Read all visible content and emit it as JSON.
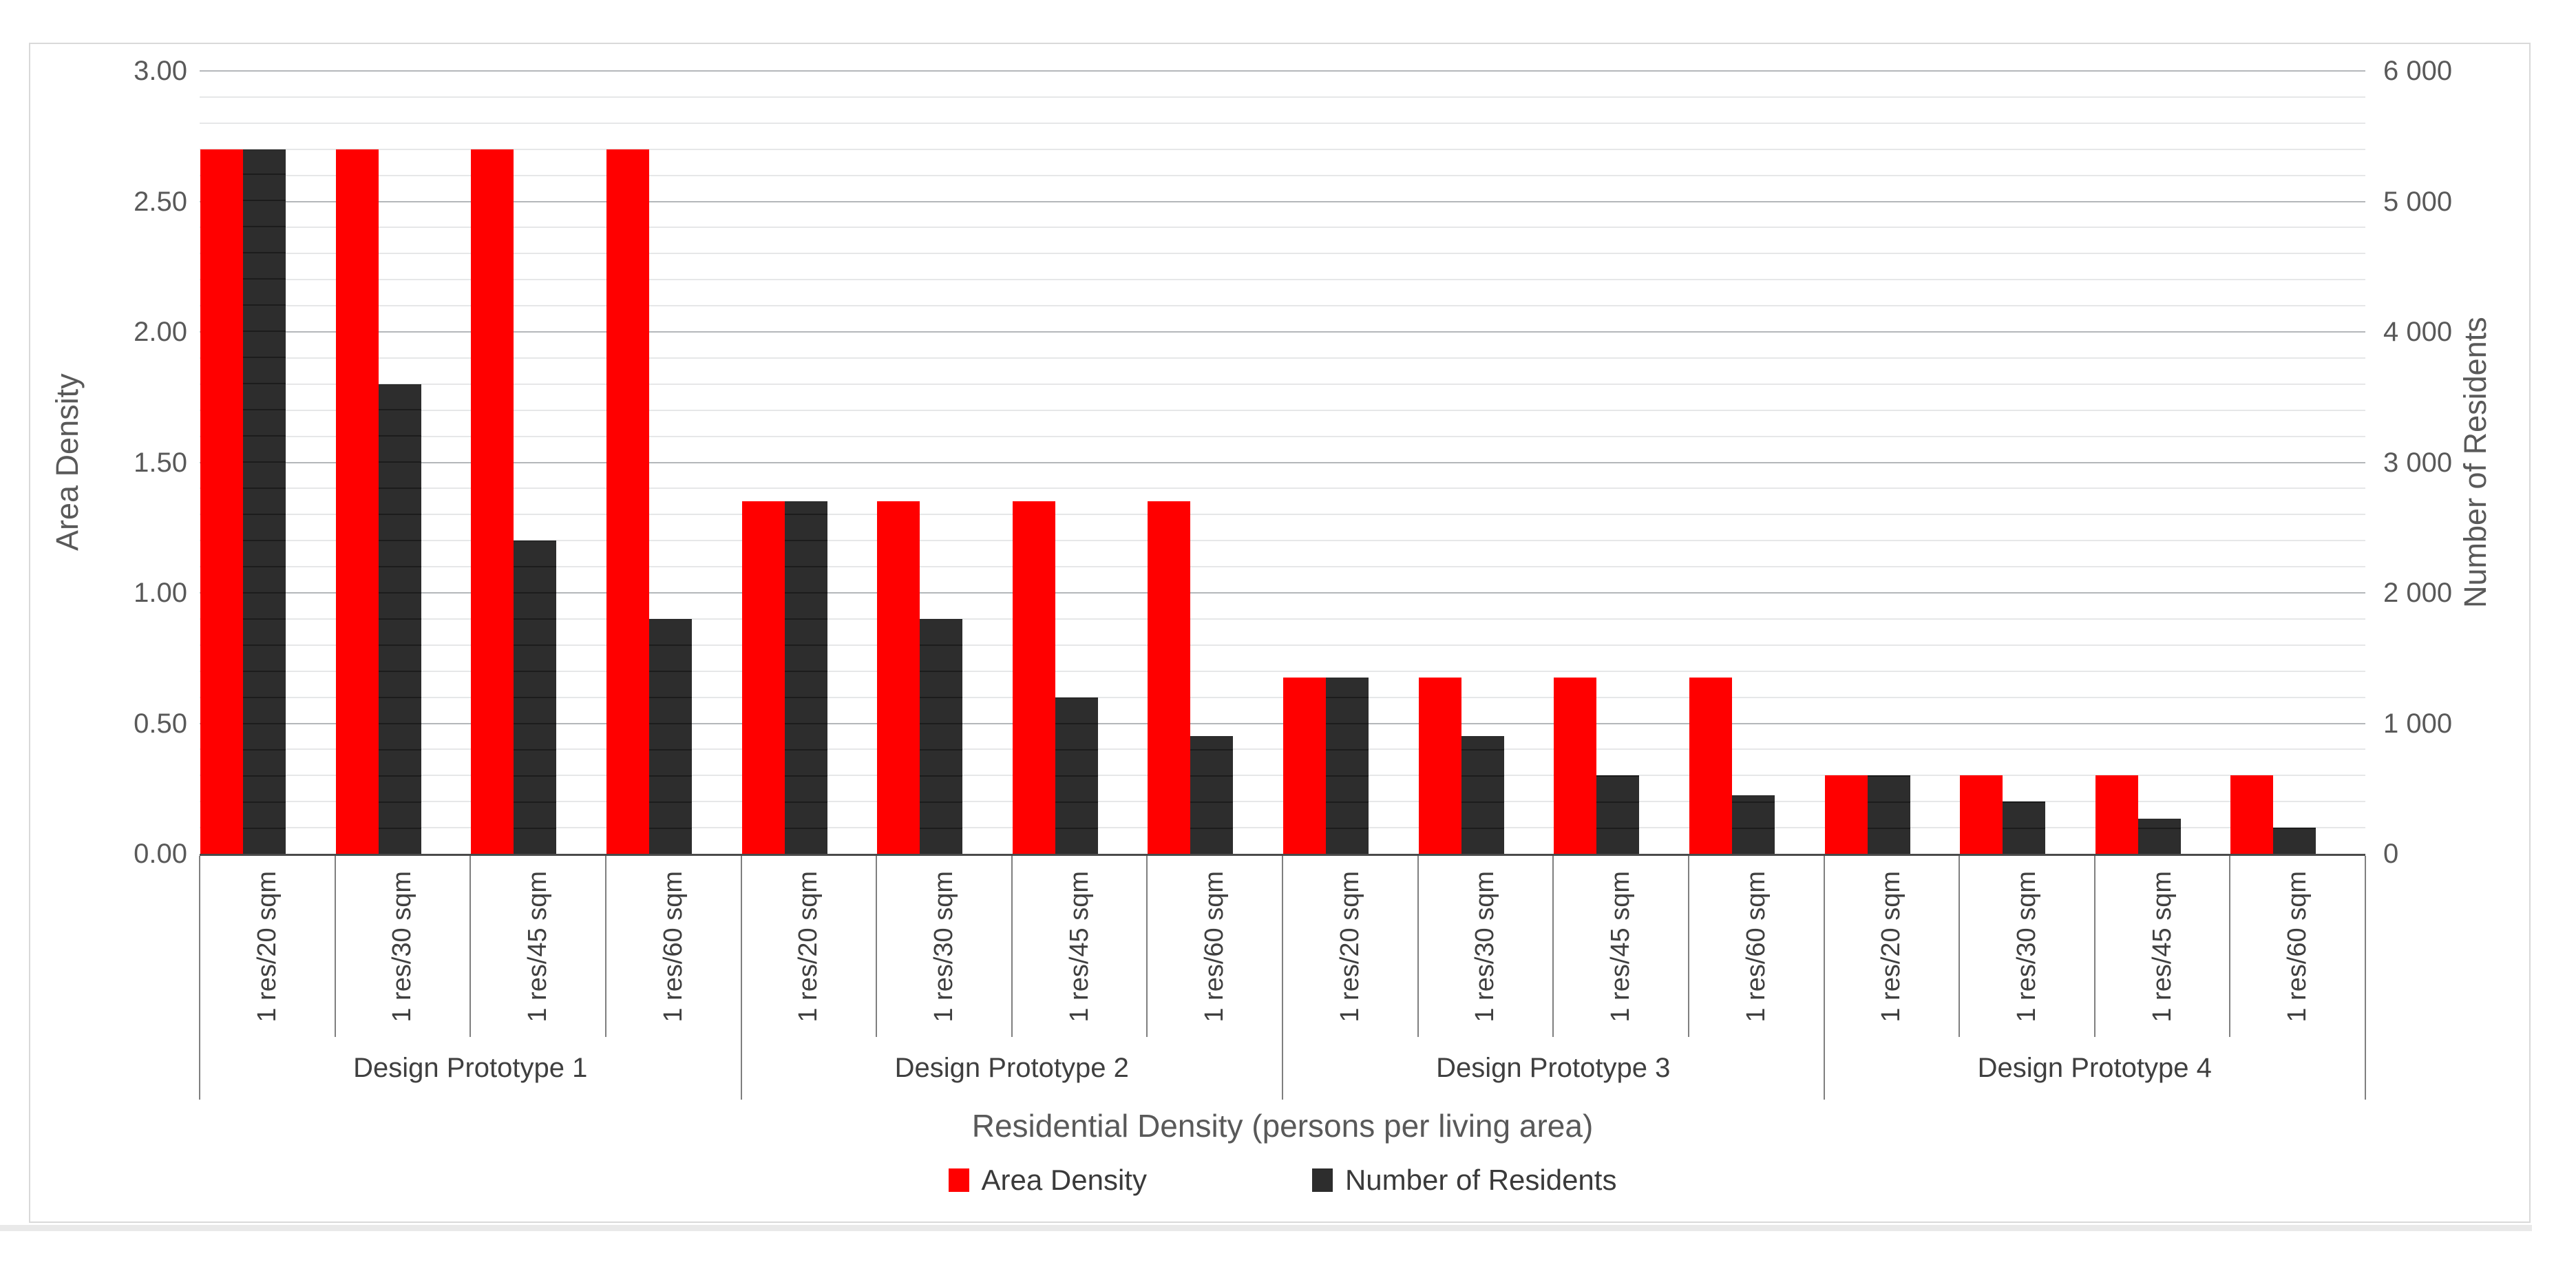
{
  "chart_data": {
    "type": "bar",
    "title": "",
    "xlabel": "Residential Density (persons per living area)",
    "ylabel_left": "Area Density",
    "ylabel_right": "Number of Residents",
    "axis_left": {
      "min": 0,
      "max": 3.0,
      "major_step": 0.5,
      "minor_step": 0.1,
      "tick_labels": [
        "3.00",
        "2.50",
        "2.00",
        "1.50",
        "1.00",
        "0.50",
        "0.00"
      ]
    },
    "axis_right": {
      "min": 0,
      "max": 6000,
      "major_step": 1000,
      "minor_step": 200,
      "tick_labels": [
        "6 000",
        "5 000",
        "4 000",
        "3 000",
        "2 000",
        "1 000",
        "0"
      ]
    },
    "grid": {
      "major_color": "#b4b7ba",
      "minor_color": "#e6e7e8",
      "minor_lines_per_unit": 10
    },
    "groups": [
      {
        "label": "Design Prototype 1",
        "categories": [
          "1 res/20 sqm",
          "1 res/30 sqm",
          "1 res/45 sqm",
          "1 res/60 sqm"
        ],
        "area_density": [
          2.7,
          2.7,
          2.7,
          2.7
        ],
        "residents": [
          5400,
          3600,
          2400,
          1800
        ]
      },
      {
        "label": "Design Prototype 2",
        "categories": [
          "1 res/20 sqm",
          "1 res/30 sqm",
          "1 res/45 sqm",
          "1 res/60 sqm"
        ],
        "area_density": [
          1.35,
          1.35,
          1.35,
          1.35
        ],
        "residents": [
          2700,
          1800,
          1200,
          900
        ]
      },
      {
        "label": "Design Prototype 3",
        "categories": [
          "1 res/20 sqm",
          "1 res/30 sqm",
          "1 res/45 sqm",
          "1 res/60 sqm"
        ],
        "area_density": [
          0.675,
          0.675,
          0.675,
          0.675
        ],
        "residents": [
          1350,
          900,
          600,
          450
        ]
      },
      {
        "label": "Design Prototype 4",
        "categories": [
          "1 res/20 sqm",
          "1 res/30 sqm",
          "1 res/45 sqm",
          "1 res/60 sqm"
        ],
        "area_density": [
          0.3,
          0.3,
          0.3,
          0.3
        ],
        "residents": [
          600,
          400,
          267,
          200
        ]
      }
    ],
    "series": [
      {
        "name": "Area Density",
        "axis": "left",
        "color": "#ff0000"
      },
      {
        "name": "Number of Residents",
        "axis": "right",
        "color": "#2d2d2d"
      }
    ],
    "legend_position": "bottom"
  }
}
